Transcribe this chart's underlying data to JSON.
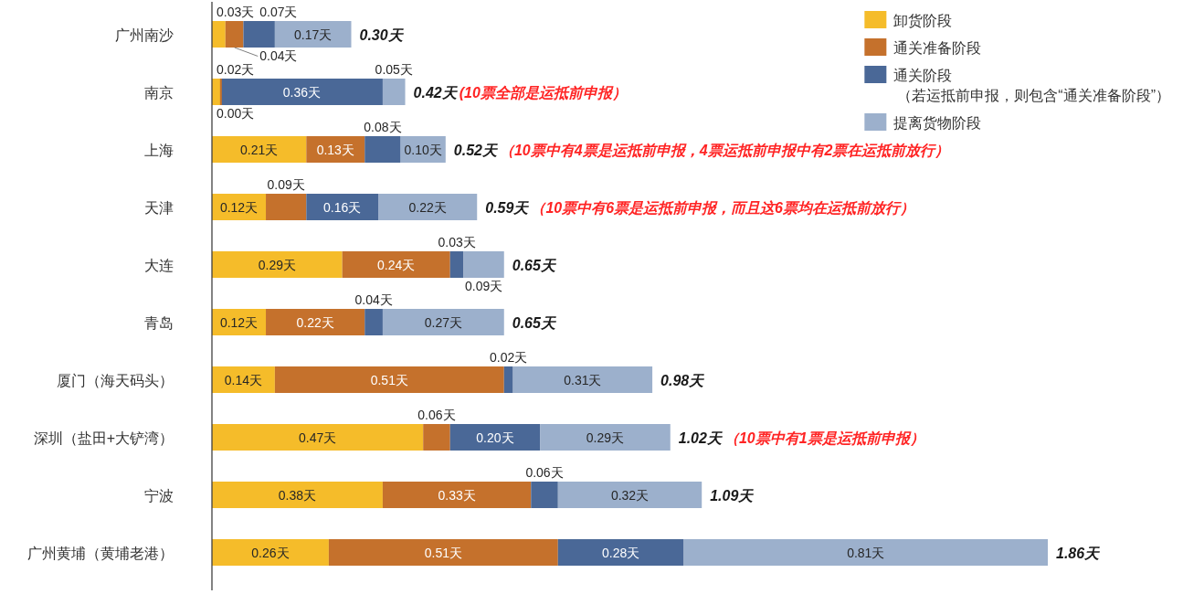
{
  "chart_data": {
    "type": "bar",
    "orientation": "horizontal",
    "stacked": true,
    "categories": [
      "广州南沙",
      "南京",
      "上海",
      "天津",
      "大连",
      "青岛",
      "厦门（海天码头）",
      "深圳（盐田+大铲湾）",
      "宁波",
      "广州黄埔（黄埔老港）"
    ],
    "series": [
      {
        "name": "卸货阶段",
        "color": "#f5bc2a",
        "values": [
          0.03,
          0.02,
          0.21,
          0.12,
          0.29,
          0.12,
          0.14,
          0.47,
          0.38,
          0.26
        ],
        "value_labels": [
          "0.03天",
          "0.02天",
          "0.21天",
          "0.12天",
          "0.29天",
          "0.12天",
          "0.14天",
          "0.47天",
          "0.38天",
          "0.26天"
        ]
      },
      {
        "name": "通关准备阶段",
        "color": "#c5712c",
        "values": [
          0.04,
          0.0,
          0.13,
          0.09,
          0.24,
          0.22,
          0.51,
          0.06,
          0.33,
          0.51
        ],
        "value_labels": [
          "0.04天",
          "0.00天",
          "0.13天",
          "0.09天",
          "0.24天",
          "0.22天",
          "0.51天",
          "0.06天",
          "0.33天",
          "0.51天"
        ]
      },
      {
        "name": "通关阶段（若运抵前申报，则包含“通关准备阶段”）",
        "color": "#4a6897",
        "values": [
          0.07,
          0.36,
          0.08,
          0.16,
          0.03,
          0.04,
          0.02,
          0.2,
          0.06,
          0.28
        ],
        "value_labels": [
          "0.07天",
          "0.36天",
          "0.08天",
          "0.16天",
          "0.03天",
          "0.04天",
          "0.02天",
          "0.20天",
          "0.06天",
          "0.28天"
        ]
      },
      {
        "name": "提离货物阶段",
        "color": "#9cb0cc",
        "values": [
          0.17,
          0.05,
          0.1,
          0.22,
          0.09,
          0.27,
          0.31,
          0.29,
          0.32,
          0.81
        ],
        "value_labels": [
          "0.17天",
          "0.05天",
          "0.10天",
          "0.22天",
          "0.09天",
          "0.27天",
          "0.31天",
          "0.29天",
          "0.32天",
          "0.81天"
        ]
      }
    ],
    "totals": [
      "0.30天",
      "0.42天",
      "0.52天",
      "0.59天",
      "0.65天",
      "0.65天",
      "0.98天",
      "1.02天",
      "1.09天",
      "1.86天"
    ],
    "annotations": [
      "(10票全部是运抵前申报）",
      "（10票中有4票是运抵前申报，4票运抵前申报中有2票在运抵前放行）",
      "（10票中有6票是运抵前申报，而且这6票均在运抵前放行）",
      "（10票中有1票是运抵前申报）"
    ],
    "tick_labels": "y",
    "legend": "top right"
  }
}
